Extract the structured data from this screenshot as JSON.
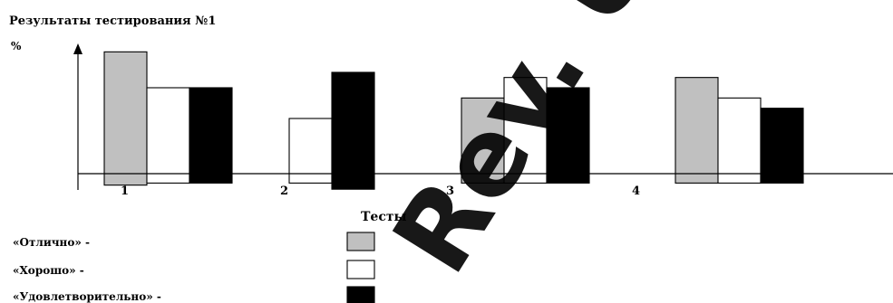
{
  "chart_data": {
    "type": "bar",
    "title": "Результаты тестирования №1",
    "ylabel": "%",
    "xlabel": "Тесты",
    "categories": [
      "1",
      "2",
      "3",
      "4"
    ],
    "ylim": [
      -2,
      13
    ],
    "baseline": 0,
    "grid": false,
    "legend_position": "bottom-left",
    "series": [
      {
        "name": "«Отлично» -",
        "color": "#c0c0c0",
        "values": [
          12.0,
          null,
          7.5,
          9.5
        ]
      },
      {
        "name": "«Хорошо» -",
        "color": "#ffffff",
        "values": [
          8.5,
          5.5,
          9.5,
          7.5
        ]
      },
      {
        "name": "«Удовлетворительно» -",
        "color": "#000000",
        "values": [
          8.5,
          10.0,
          8.5,
          6.5
        ]
      }
    ],
    "series_lows": [
      [
        -1.0,
        null,
        -0.8,
        -0.8
      ],
      [
        -0.8,
        -0.8,
        -0.8,
        -0.8
      ],
      [
        -0.8,
        -1.4,
        -0.8,
        -0.8
      ]
    ]
  },
  "watermark": "Rev. Univ"
}
